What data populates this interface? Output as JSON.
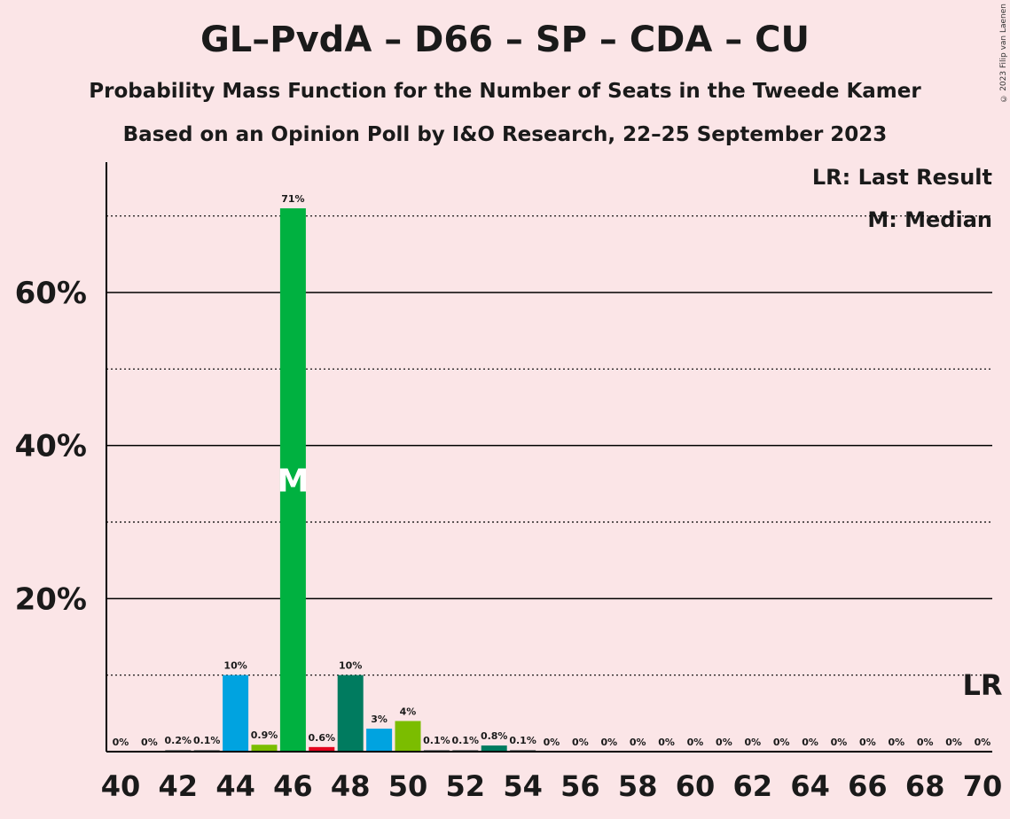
{
  "title": "GL–PvdA – D66 – SP – CDA – CU",
  "subtitle_1": "Probability Mass Function for the Number of Seats in the Tweede Kamer",
  "subtitle_2": "Based on an Opinion Poll by I&O Research, 22–25 September 2023",
  "copyright": "© 2023 Filip van Laenen",
  "legend": {
    "last_result": "LR: Last Result",
    "median": "M: Median"
  },
  "markers": {
    "median_label": "M",
    "last_result_label": "LR"
  },
  "colors": {
    "background": "#fbe5e7",
    "gl_pvda": "#00b140",
    "d66": "#00a3e0",
    "sp": "#e3001b",
    "cda": "#007b5f",
    "cu": "#7bbd00",
    "gl": "#86b300"
  },
  "chart_data": {
    "type": "bar",
    "x": [
      40,
      41,
      42,
      43,
      44,
      45,
      46,
      47,
      48,
      49,
      50,
      51,
      52,
      53,
      54,
      55,
      56,
      57,
      58,
      59,
      60,
      61,
      62,
      63,
      64,
      65,
      66,
      67,
      68,
      69,
      70
    ],
    "values": [
      0,
      0,
      0.2,
      0.1,
      10,
      0.9,
      71,
      0.6,
      10,
      3,
      4,
      0.1,
      0.1,
      0.8,
      0.1,
      0,
      0,
      0,
      0,
      0,
      0,
      0,
      0,
      0,
      0,
      0,
      0,
      0,
      0,
      0,
      0
    ],
    "value_labels": [
      "0%",
      "0%",
      "0.2%",
      "0.1%",
      "10%",
      "0.9%",
      "71%",
      "0.6%",
      "10%",
      "3%",
      "4%",
      "0.1%",
      "0.1%",
      "0.8%",
      "0.1%",
      "0%",
      "0%",
      "0%",
      "0%",
      "0%",
      "0%",
      "0%",
      "0%",
      "0%",
      "0%",
      "0%",
      "0%",
      "0%",
      "0%",
      "0%",
      "0%"
    ],
    "bar_colors": [
      "#888",
      "#888",
      "#888",
      "#888",
      "#00a3e0",
      "#7bbd00",
      "#00b140",
      "#e3001b",
      "#007b5f",
      "#00a3e0",
      "#7bbd00",
      "#888",
      "#888",
      "#007b5f",
      "#888",
      "#888",
      "#888",
      "#888",
      "#888",
      "#888",
      "#888",
      "#888",
      "#888",
      "#888",
      "#888",
      "#888",
      "#888",
      "#888",
      "#888",
      "#888",
      "#888"
    ],
    "x_tick_labels": [
      "40",
      "42",
      "44",
      "46",
      "48",
      "50",
      "52",
      "54",
      "56",
      "58",
      "60",
      "62",
      "64",
      "66",
      "68",
      "70"
    ],
    "y_tick_labels": [
      "20%",
      "40%",
      "60%"
    ],
    "y_solid_gridlines": [
      20,
      40,
      60
    ],
    "y_dotted_gridlines": [
      10,
      30,
      50,
      70
    ],
    "ylim": [
      0,
      77
    ],
    "median_seat": 46,
    "last_result_seat": 70
  }
}
